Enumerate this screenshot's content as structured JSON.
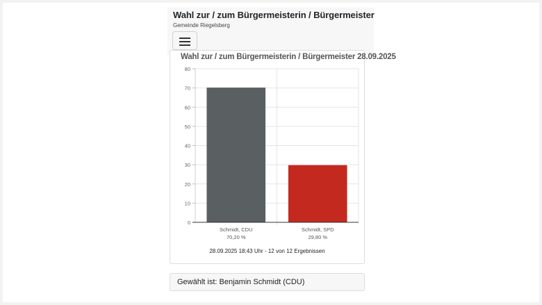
{
  "header": {
    "title": "Wahl zur / zum Bürgermeisterin / Bürgermeister",
    "subtitle": "Gemeinde Riegelsberg",
    "menu_icon": "hamburger-icon"
  },
  "chart_card": {
    "title": "Wahl zur / zum Bürgermeisterin / Bürgermeister 28.09.2025",
    "meta": "28.09.2025 18:43 Uhr - 12 von 12 Ergebnissen"
  },
  "result": {
    "text": "Gewählt ist: Benjamin Schmidt (CDU)"
  },
  "chart_data": {
    "type": "bar",
    "title": "Wahl zur / zum Bürgermeisterin / Bürgermeister 28.09.2025",
    "categories": [
      "Schmidt, CDU",
      "Schmidt, SPD"
    ],
    "data_labels": [
      "70,20 %",
      "29,80 %"
    ],
    "values": [
      70.2,
      29.8
    ],
    "colors": [
      "#5a6062",
      "#c4291f"
    ],
    "ylim": [
      0,
      80
    ],
    "yticks": [
      0,
      10,
      20,
      30,
      40,
      50,
      60,
      70,
      80
    ],
    "grid": true,
    "xlabel": "",
    "ylabel": ""
  }
}
